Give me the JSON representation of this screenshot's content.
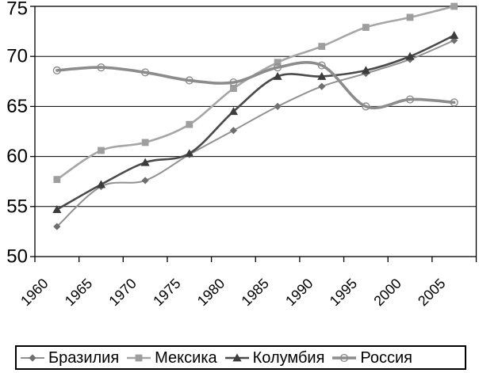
{
  "figure": {
    "background": "#ffffff",
    "axis_color": "#000000",
    "text_color": "#000000"
  },
  "chart_data": {
    "type": "line",
    "title": "",
    "categories": [
      "1960",
      "1965",
      "1970",
      "1975",
      "1980",
      "1985",
      "1990",
      "1995",
      "2000",
      "2005"
    ],
    "y_tick_labels": [
      "50",
      "55",
      "60",
      "65",
      "70",
      "75"
    ],
    "ylim": [
      50,
      75
    ],
    "grid": "horizontal",
    "smoothed": true,
    "legend_position": "bottom",
    "series": [
      {
        "name": "Бразилия",
        "marker": "diamond",
        "line_color": "#919191",
        "marker_color": "#6f6f6f",
        "line_width": 2,
        "values": [
          53.0,
          57.0,
          57.6,
          60.2,
          62.6,
          65.0,
          67.0,
          68.3,
          69.7,
          71.6
        ]
      },
      {
        "name": "Мексика",
        "marker": "square",
        "line_color": "#a6a6a6",
        "marker_color": "#9e9e9e",
        "line_width": 2.6,
        "values": [
          57.7,
          60.6,
          61.4,
          63.2,
          66.8,
          69.4,
          71.0,
          72.9,
          73.9,
          75.0
        ]
      },
      {
        "name": "Колумбия",
        "marker": "triangle",
        "line_color": "#4a4a4a",
        "marker_color": "#3c3c3c",
        "line_width": 2.6,
        "values": [
          54.7,
          57.2,
          59.4,
          60.3,
          64.5,
          68.0,
          68.0,
          68.6,
          70.0,
          72.1
        ]
      },
      {
        "name": "Россия",
        "marker": "circle-open",
        "line_color": "#8c8c8c",
        "marker_color": "#8c8c8c",
        "line_width": 3.6,
        "values": [
          68.6,
          68.9,
          68.4,
          67.6,
          67.4,
          68.9,
          69.1,
          65.0,
          65.7,
          65.4
        ]
      }
    ]
  }
}
